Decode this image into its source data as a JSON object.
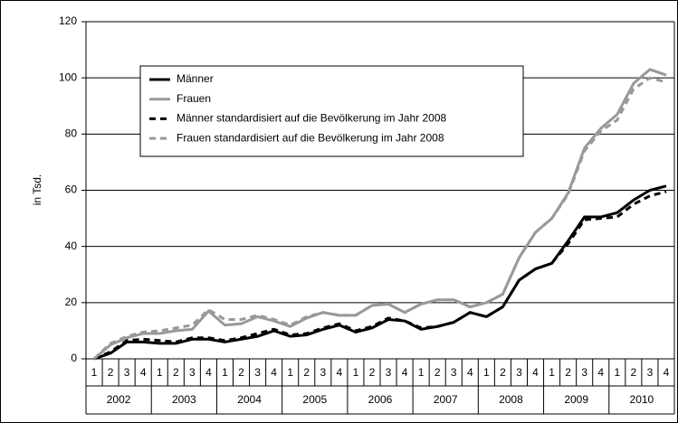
{
  "chart_data": {
    "type": "line",
    "y_label": "in Tsd.",
    "categories": [
      "1",
      "2",
      "3",
      "4",
      "1",
      "2",
      "3",
      "4",
      "1",
      "2",
      "3",
      "4",
      "1",
      "2",
      "3",
      "4",
      "1",
      "2",
      "3",
      "4",
      "1",
      "2",
      "3",
      "4",
      "1",
      "2",
      "3",
      "4",
      "1",
      "2",
      "3",
      "4",
      "1",
      "2",
      "3",
      "4"
    ],
    "years": [
      "2002",
      "2003",
      "2004",
      "2005",
      "2006",
      "2007",
      "2008",
      "2009",
      "2010"
    ],
    "ylim": [
      0,
      120
    ],
    "yticks": [
      0,
      20,
      40,
      60,
      80,
      100,
      120
    ],
    "grid": true,
    "series": [
      {
        "name": "Männer",
        "color": "#000000",
        "dashed": false,
        "values": [
          0,
          2,
          6,
          6,
          5.5,
          5.5,
          7,
          7,
          6,
          7,
          8,
          10,
          8,
          8.5,
          10.5,
          12,
          9.5,
          11,
          14,
          13.5,
          10.5,
          11.5,
          13,
          16.5,
          15,
          18.5,
          28,
          32,
          34,
          42,
          50.5,
          50.5,
          52,
          56.5,
          60,
          61.5
        ]
      },
      {
        "name": "Frauen",
        "color": "#999999",
        "dashed": false,
        "values": [
          0,
          5,
          7.5,
          9,
          9,
          10,
          10.5,
          17,
          12,
          12.5,
          15,
          13.5,
          11.5,
          14.5,
          16.5,
          15.5,
          15.5,
          19,
          19.5,
          16.5,
          19.5,
          21,
          21,
          18.5,
          20,
          23,
          36,
          45,
          50,
          59,
          75,
          82,
          87,
          98,
          103,
          101
        ]
      },
      {
        "name": "Männer standardisiert auf die Bevölkerung im Jahr 2008",
        "color": "#000000",
        "dashed": true,
        "values": [
          0,
          2.5,
          6.5,
          7,
          6.5,
          6,
          7.5,
          7.5,
          6.5,
          7.5,
          9,
          10.5,
          8.5,
          9,
          11,
          12.5,
          10,
          11.5,
          14.5,
          13.5,
          11,
          11.5,
          13,
          16.5,
          15,
          18.5,
          28,
          32,
          34,
          41,
          49.5,
          50,
          50.5,
          55,
          58,
          59.5
        ]
      },
      {
        "name": "Frauen standardisiert auf die Bevölkerung im Jahr  2008",
        "color": "#999999",
        "dashed": true,
        "values": [
          0,
          5.5,
          8,
          9.5,
          10,
          11,
          12,
          17.5,
          14,
          14,
          15.5,
          14,
          12,
          15,
          16.5,
          15.5,
          15.5,
          19,
          19.5,
          16.5,
          19.5,
          21,
          21,
          18.5,
          20,
          23,
          36,
          45,
          50,
          58.5,
          74,
          81,
          85,
          96,
          100,
          98.5
        ]
      }
    ]
  }
}
